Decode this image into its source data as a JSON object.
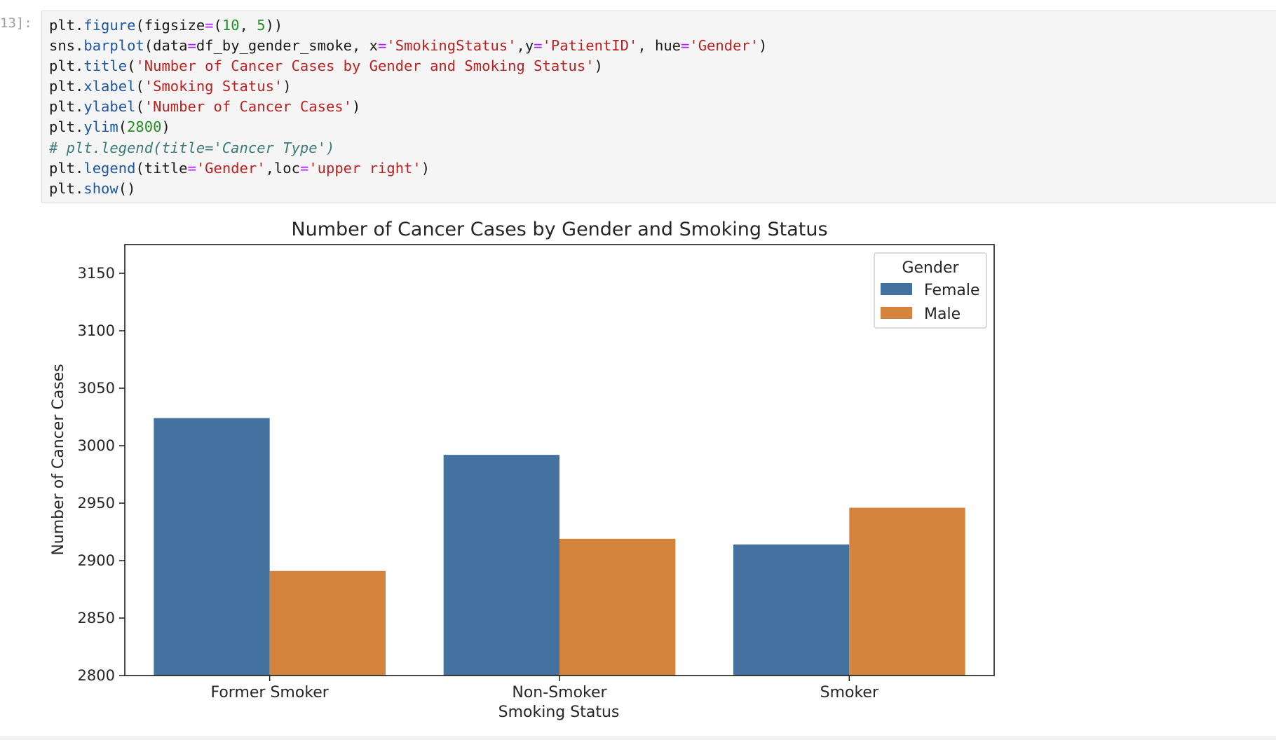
{
  "cell": {
    "prompt": "13]:",
    "code_lines": [
      [
        {
          "t": "plt."
        },
        {
          "t": "figure",
          "c": "fn"
        },
        {
          "t": "(figsize"
        },
        {
          "t": "=",
          "c": "op"
        },
        {
          "t": "("
        },
        {
          "t": "10",
          "c": "num"
        },
        {
          "t": ", "
        },
        {
          "t": "5",
          "c": "num"
        },
        {
          "t": "))"
        }
      ],
      [
        {
          "t": "sns."
        },
        {
          "t": "barplot",
          "c": "fn"
        },
        {
          "t": "(data"
        },
        {
          "t": "=",
          "c": "op"
        },
        {
          "t": "df_by_gender_smoke, x"
        },
        {
          "t": "=",
          "c": "op"
        },
        {
          "t": "'SmokingStatus'",
          "c": "str"
        },
        {
          "t": ",y"
        },
        {
          "t": "=",
          "c": "op"
        },
        {
          "t": "'PatientID'",
          "c": "str"
        },
        {
          "t": ", hue"
        },
        {
          "t": "=",
          "c": "op"
        },
        {
          "t": "'Gender'",
          "c": "str"
        },
        {
          "t": ")"
        }
      ],
      [
        {
          "t": "plt."
        },
        {
          "t": "title",
          "c": "fn"
        },
        {
          "t": "("
        },
        {
          "t": "'Number of Cancer Cases by Gender and Smoking Status'",
          "c": "str"
        },
        {
          "t": ")"
        }
      ],
      [
        {
          "t": "plt."
        },
        {
          "t": "xlabel",
          "c": "fn"
        },
        {
          "t": "("
        },
        {
          "t": "'Smoking Status'",
          "c": "str"
        },
        {
          "t": ")"
        }
      ],
      [
        {
          "t": "plt."
        },
        {
          "t": "ylabel",
          "c": "fn"
        },
        {
          "t": "("
        },
        {
          "t": "'Number of Cancer Cases'",
          "c": "str"
        },
        {
          "t": ")"
        }
      ],
      [
        {
          "t": "plt."
        },
        {
          "t": "ylim",
          "c": "fn"
        },
        {
          "t": "("
        },
        {
          "t": "2800",
          "c": "num"
        },
        {
          "t": ")"
        }
      ],
      [
        {
          "t": "# plt.legend(title='Cancer Type')",
          "c": "cmt"
        }
      ],
      [
        {
          "t": "plt."
        },
        {
          "t": "legend",
          "c": "fn"
        },
        {
          "t": "(title"
        },
        {
          "t": "=",
          "c": "op"
        },
        {
          "t": "'Gender'",
          "c": "str"
        },
        {
          "t": ",loc"
        },
        {
          "t": "=",
          "c": "op"
        },
        {
          "t": "'upper right'",
          "c": "str"
        },
        {
          "t": ")"
        }
      ],
      [
        {
          "t": "plt."
        },
        {
          "t": "show",
          "c": "fn"
        },
        {
          "t": "()"
        }
      ]
    ]
  },
  "colors": {
    "Female": "#4472a0",
    "Male": "#d5843e"
  },
  "chart_data": {
    "type": "bar",
    "title": "Number of Cancer Cases by Gender and Smoking Status",
    "xlabel": "Smoking Status",
    "ylabel": "Number of Cancer Cases",
    "categories": [
      "Former Smoker",
      "Non-Smoker",
      "Smoker"
    ],
    "series": [
      {
        "name": "Female",
        "values": [
          3024,
          2992,
          2914
        ]
      },
      {
        "name": "Male",
        "values": [
          2891,
          2919,
          2946
        ]
      }
    ],
    "ylim": [
      2800,
      3175
    ],
    "yticks": [
      2800,
      2850,
      2900,
      2950,
      3000,
      3050,
      3100,
      3150
    ],
    "grid": false,
    "legend": {
      "title": "Gender",
      "placement": "upper right"
    }
  }
}
